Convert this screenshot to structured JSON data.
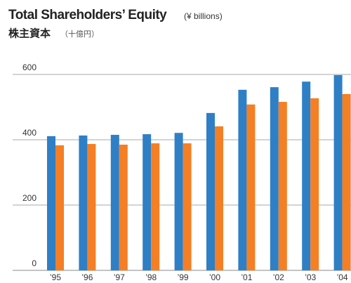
{
  "chart_data": {
    "type": "bar",
    "title": "Total Shareholders’ Equity",
    "subtitle": "(¥ billions)",
    "title_ja": "株主資本",
    "subtitle_ja": "（十億円）",
    "categories": [
      "’95",
      "’96",
      "’97",
      "’98",
      "’99",
      "’00",
      "’01",
      "’02",
      "’03",
      "’04"
    ],
    "series": [
      {
        "color": "#2f7fc6",
        "values": [
          411,
          413,
          415,
          417,
          421,
          482,
          553,
          561,
          578,
          598
        ]
      },
      {
        "color": "#f47f25",
        "values": [
          383,
          387,
          385,
          389,
          389,
          441,
          508,
          516,
          527,
          540
        ]
      }
    ],
    "ylim": [
      0,
      600
    ],
    "yticks": [
      0,
      200,
      400,
      600
    ],
    "grid": true
  }
}
